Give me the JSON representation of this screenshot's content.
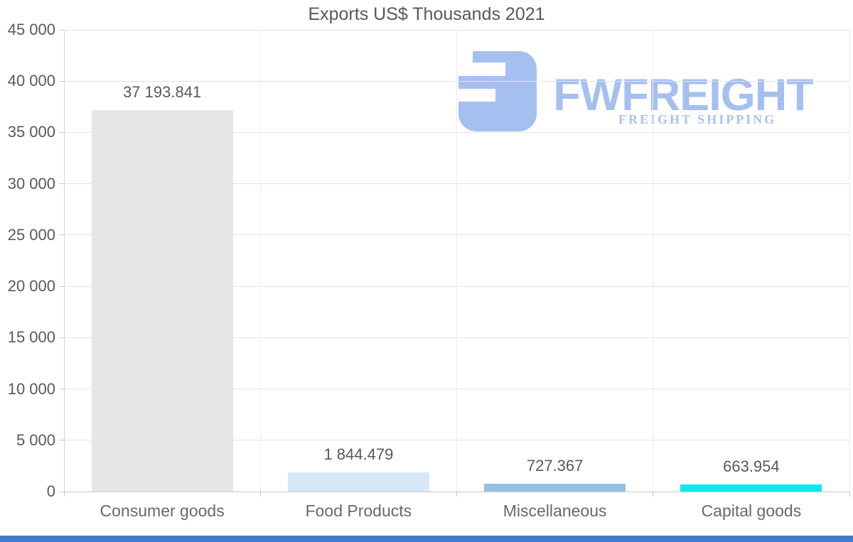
{
  "title": "Exports US$ Thousands 2021",
  "logo": {
    "brand": "FWFREIGHT",
    "tagline": "FREIGHT SHIPPING",
    "color": "#a6bff1"
  },
  "footer": {
    "color": "#4577c9"
  },
  "chart_data": {
    "type": "bar",
    "title": "Exports US$ Thousands 2021",
    "categories": [
      "Consumer goods",
      "Food Products",
      "Miscellaneous",
      "Capital goods"
    ],
    "values": [
      37193.841,
      1844.479,
      727.367,
      663.954
    ],
    "value_labels": [
      "37 193.841",
      "1 844.479",
      "727.367",
      "663.954"
    ],
    "bar_colors": [
      "#e6e6e6",
      "#d6e8f8",
      "#95c1e4",
      "#0be9ee"
    ],
    "xlabel": "",
    "ylabel": "",
    "ylim": [
      0,
      45000
    ],
    "ytick_step": 5000,
    "ytick_labels": [
      "0",
      "5 000",
      "10 000",
      "15 000",
      "20 000",
      "25 000",
      "30 000",
      "35 000",
      "40 000",
      "45 000"
    ],
    "grid": true,
    "legend": "none"
  }
}
